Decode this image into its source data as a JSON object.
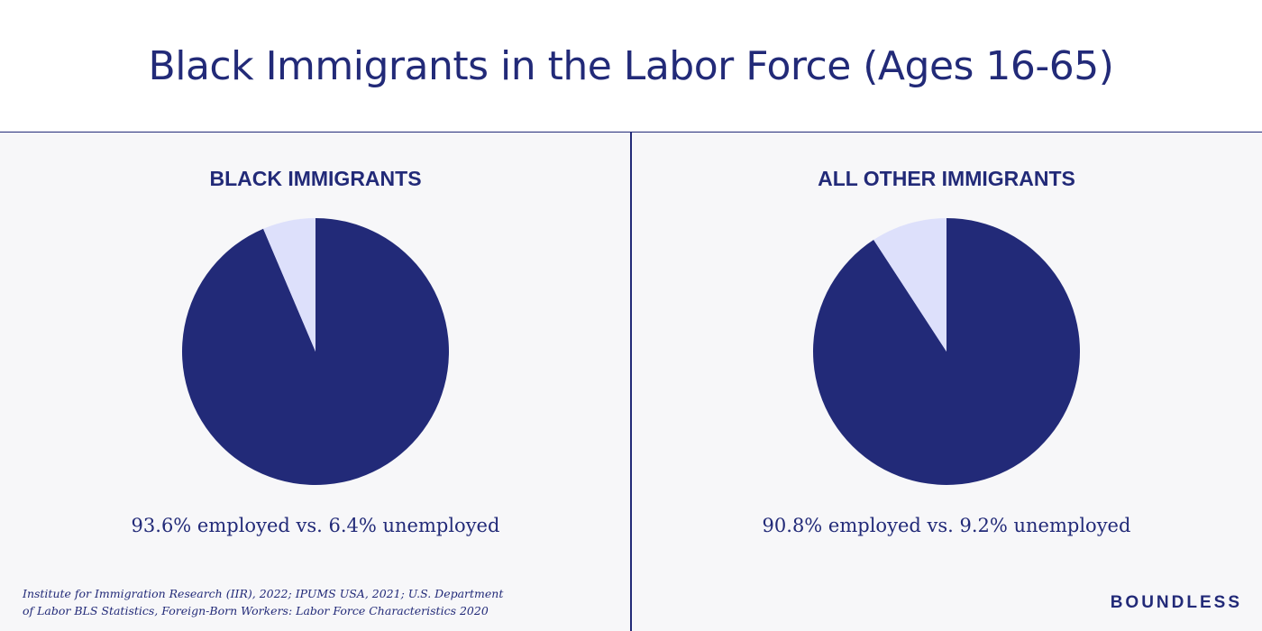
{
  "title": "Black Immigrants in the Labor Force (Ages 16-65)",
  "colors": {
    "primary": "#222a78",
    "accent_light": "#dde0fb",
    "panel_bg": "#f7f7f9",
    "header_bg": "#ffffff"
  },
  "chart_data": [
    {
      "type": "pie",
      "title": "BLACK IMMIGRANTS",
      "slices": [
        {
          "label": "employed",
          "value": 93.6,
          "color": "#222a78"
        },
        {
          "label": "unemployed",
          "value": 6.4,
          "color": "#dde0fb"
        }
      ],
      "caption": "93.6% employed vs. 6.4% unemployed"
    },
    {
      "type": "pie",
      "title": "ALL OTHER IMMIGRANTS",
      "slices": [
        {
          "label": "employed",
          "value": 90.8,
          "color": "#222a78"
        },
        {
          "label": "unemployed",
          "value": 9.2,
          "color": "#dde0fb"
        }
      ],
      "caption": "90.8% employed vs. 9.2% unemployed"
    }
  ],
  "source": {
    "line1": "Institute for Immigration Research (IIR), 2022; IPUMS USA, 2021; U.S. Department",
    "line2": "of Labor BLS Statistics, Foreign-Born Workers: Labor Force Characteristics 2020"
  },
  "logo": "BOUNDLESS"
}
